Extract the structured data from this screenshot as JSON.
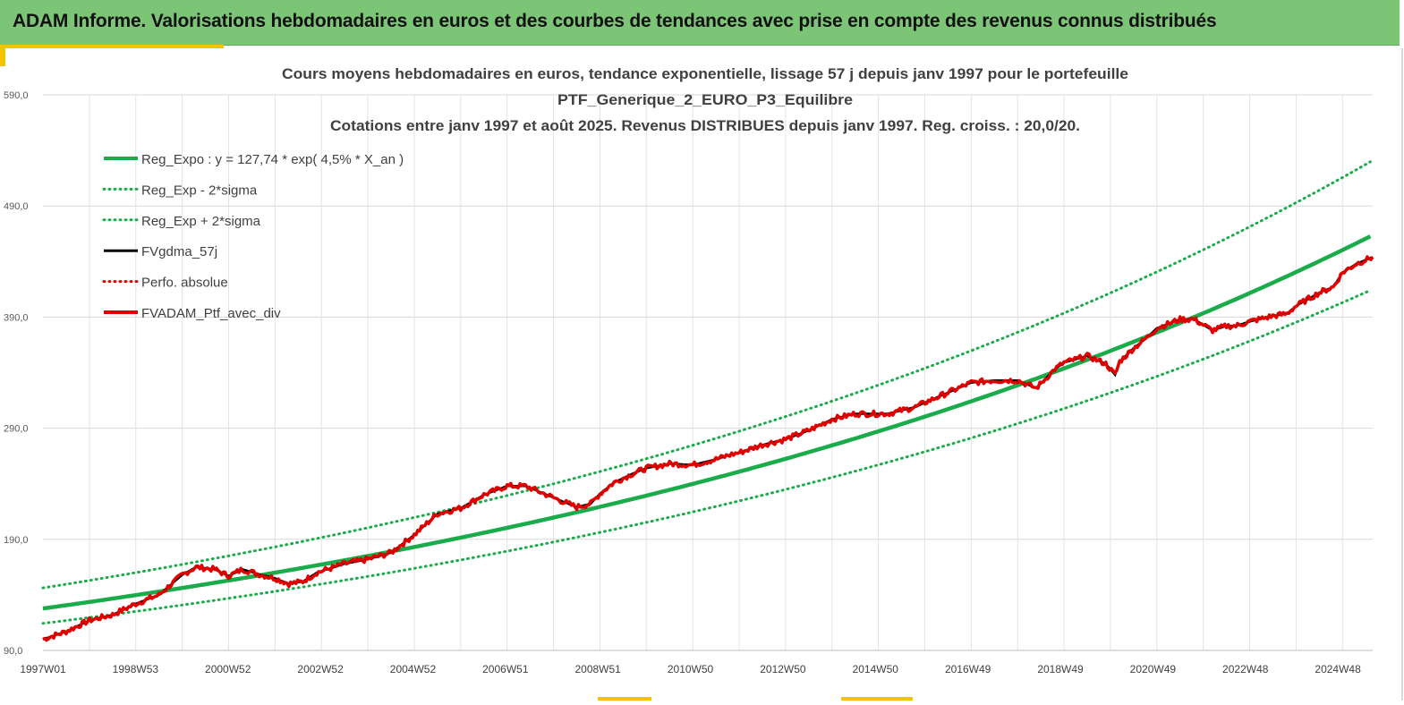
{
  "header": {
    "title": "ADAM Informe. Valorisations hebdomadaires en euros et des courbes de tendances avec prise en compte des revenus connus distribués"
  },
  "chart_data": {
    "type": "line",
    "title_lines": [
      "Cours moyens hebdomadaires  en euros, tendance exponentielle, lissage 57 j depuis janv 1997 pour le portefeuille",
      "PTF_Generique_2_EURO_P3_Equilibre",
      "Cotations  entre janv 1997 et août  2025. Revenus DISTRIBUES depuis janv 1997. Reg. croiss. : 20,0/20."
    ],
    "x_tick_labels": [
      "1997W01",
      "1998W53",
      "2000W52",
      "2002W52",
      "2004W52",
      "2006W51",
      "2008W51",
      "2010W50",
      "2012W50",
      "2014W50",
      "2016W49",
      "2018W49",
      "2020W49",
      "2022W48",
      "2024W48"
    ],
    "y_tick_labels": [
      "90,0",
      "190,0",
      "290,0",
      "390,0",
      "490,0",
      "590,0"
    ],
    "y_ticks": [
      90,
      190,
      290,
      390,
      490,
      590
    ],
    "ylim": [
      90,
      590
    ],
    "xlim": [
      1997.0,
      2025.65
    ],
    "grid": true,
    "legend_position": "top-left",
    "legend": [
      {
        "label": "Reg_Expo : y = 127,74 * exp( 4,5% *  X_an )",
        "color": "#1aab4b",
        "style": "solid",
        "width": 4
      },
      {
        "label": "Reg_Exp - 2*sigma",
        "color": "#1aab4b",
        "style": "dotted",
        "width": 3
      },
      {
        "label": "Reg_Exp + 2*sigma",
        "color": "#1aab4b",
        "style": "dotted",
        "width": 3
      },
      {
        "label": "FVgdma_57j",
        "color": "#000000",
        "style": "solid",
        "width": 3
      },
      {
        "label": "Perfo. absolue",
        "color": "#e00000",
        "style": "dotted",
        "width": 3
      },
      {
        "label": "FVADAM_Ptf_avec_div",
        "color": "#e00000",
        "style": "solid",
        "width": 4
      }
    ],
    "regression": {
      "a": 127.74,
      "rate": 0.045,
      "minus_2sigma_factor": 0.895,
      "plus_2sigma_factor": 1.145
    },
    "series": [
      {
        "name": "FVADAM_Ptf_avec_div",
        "x": [
          1997.0,
          1997.5,
          1998.0,
          1998.5,
          1999.0,
          1999.5,
          2000.0,
          2000.3,
          2000.7,
          2001.0,
          2001.3,
          2001.7,
          2002.0,
          2002.3,
          2002.6,
          2002.9,
          2003.2,
          2003.5,
          2004.0,
          2004.5,
          2005.0,
          2005.5,
          2006.0,
          2006.5,
          2007.0,
          2007.4,
          2007.8,
          2008.2,
          2008.5,
          2008.8,
          2009.0,
          2009.3,
          2009.7,
          2010.0,
          2010.5,
          2011.0,
          2011.5,
          2011.8,
          2012.0,
          2012.5,
          2013.0,
          2013.5,
          2014.0,
          2014.5,
          2014.9,
          2015.2,
          2015.5,
          2015.8,
          2016.0,
          2016.5,
          2017.0,
          2017.5,
          2018.0,
          2018.4,
          2018.8,
          2019.0,
          2019.5,
          2019.9,
          2020.1,
          2020.2,
          2020.5,
          2020.8,
          2021.0,
          2021.5,
          2021.8,
          2022.2,
          2022.5,
          2022.7,
          2023.0,
          2023.5,
          2023.8,
          2024.0,
          2024.5,
          2024.8,
          2025.0,
          2025.3,
          2025.65
        ],
        "y": [
          100,
          107,
          117,
          122,
          132,
          140,
          158,
          165,
          163,
          157,
          163,
          158,
          155,
          150,
          152,
          160,
          164,
          168,
          172,
          178,
          194,
          213,
          218,
          230,
          238,
          238,
          231,
          224,
          219,
          222,
          231,
          241,
          249,
          254,
          258,
          257,
          262,
          266,
          268,
          275,
          280,
          288,
          298,
          303,
          303,
          303,
          306,
          309,
          313,
          322,
          331,
          333,
          333,
          326,
          343,
          349,
          355,
          348,
          338,
          350,
          362,
          372,
          380,
          388,
          388,
          378,
          382,
          382,
          386,
          391,
          393,
          400,
          412,
          417,
          430,
          438,
          444
        ]
      }
    ]
  }
}
